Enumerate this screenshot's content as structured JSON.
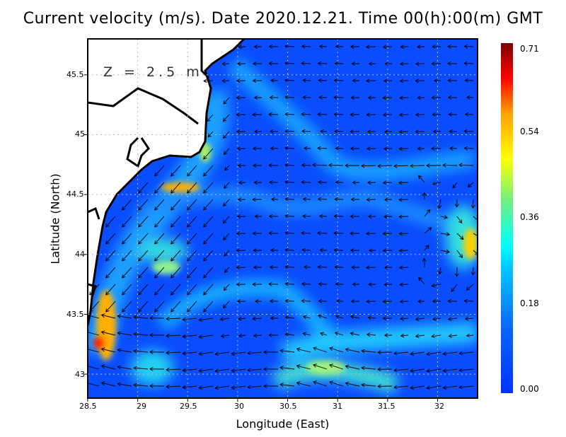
{
  "title": "Current velocity (m/s). Date 2020.12.21. Time 00(h):00(m) GMT",
  "depth_label": "Z = 2.5 m",
  "x_axis": {
    "label": "Longitude (East)",
    "ticks": [
      "28.5",
      "29",
      "29.5",
      "30",
      "30.5",
      "31",
      "31.5",
      "32"
    ],
    "range": [
      28.5,
      32.4
    ]
  },
  "y_axis": {
    "label": "Latitude (North)",
    "ticks": [
      "45.5",
      "45",
      "44.5",
      "44",
      "43.5",
      "43"
    ],
    "range": [
      42.8,
      45.8
    ]
  },
  "colorbar": {
    "ticks": [
      "0.71",
      "0.54",
      "0.36",
      "0.18",
      "0.00"
    ],
    "range": [
      0.0,
      0.71
    ],
    "colormap": "jet"
  },
  "colors": {
    "background_sea": "#0a4cff",
    "land": "#ffffff",
    "coastline": "#000000"
  }
}
